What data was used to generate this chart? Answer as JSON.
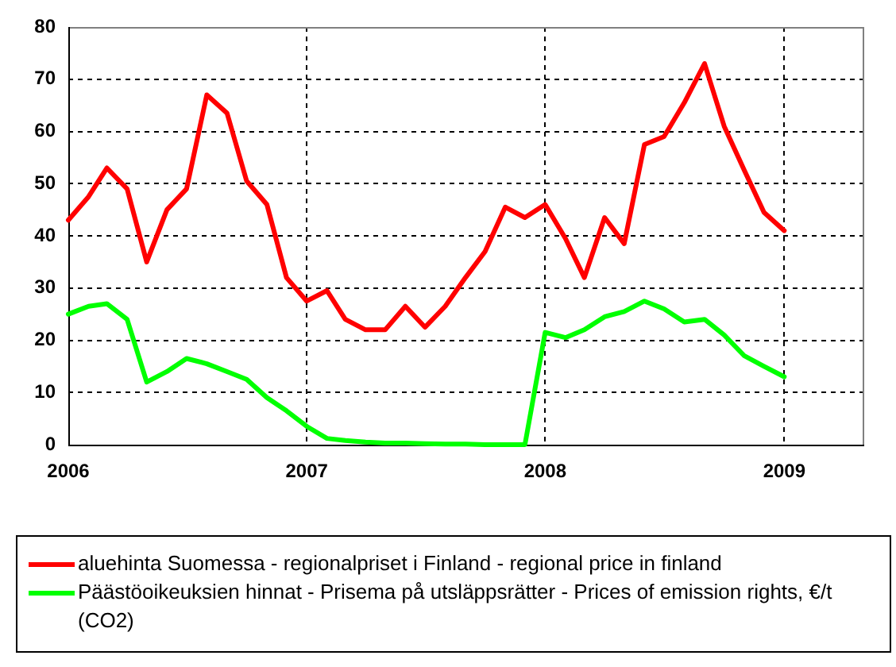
{
  "chart_data": {
    "type": "line",
    "x": [
      "2006-01",
      "2006-02",
      "2006-03",
      "2006-04",
      "2006-05",
      "2006-06",
      "2006-07",
      "2006-08",
      "2006-09",
      "2006-10",
      "2006-11",
      "2006-12",
      "2007-01",
      "2007-02",
      "2007-03",
      "2007-04",
      "2007-05",
      "2007-06",
      "2007-07",
      "2007-08",
      "2007-09",
      "2007-10",
      "2007-11",
      "2007-12",
      "2008-01",
      "2008-02",
      "2008-03",
      "2008-04",
      "2008-05",
      "2008-06",
      "2008-07",
      "2008-08",
      "2008-09",
      "2008-10",
      "2008-11",
      "2008-12",
      "2009-01"
    ],
    "xlim": [
      "2006-01",
      "2009-05"
    ],
    "xticks": [
      "2006",
      "2007",
      "2008",
      "2009"
    ],
    "ylim": [
      0,
      80
    ],
    "yticks": [
      0,
      10,
      20,
      30,
      40,
      50,
      60,
      70,
      80
    ],
    "grid": true,
    "legend": "bottom",
    "marker": "none",
    "line_style": "solid",
    "series": [
      {
        "name": "aluehinta Suomessa - regionalpriset i Finland - regional price in finland",
        "color": "#ff0000",
        "values": [
          43,
          47.5,
          53,
          49,
          35,
          45,
          49,
          67,
          63.5,
          50.5,
          46,
          32,
          27.5,
          29.5,
          24,
          22,
          22,
          26.5,
          22.5,
          26.5,
          32,
          37,
          45.5,
          43.5,
          46,
          39.5,
          32,
          43.5,
          38.5,
          57.5,
          59,
          65.5,
          73,
          61,
          52.5,
          44.5,
          41
        ]
      },
      {
        "name": "Päästöoikeuksien hinnat - Prisema på utsläppsrätter - Prices of emission rights, €/t (CO2)",
        "color": "#00ff00",
        "values": [
          25,
          26.5,
          27,
          24,
          12,
          14,
          16.5,
          15.5,
          14,
          12.5,
          9,
          6.5,
          3.5,
          1.2,
          0.8,
          0.5,
          0.3,
          0.3,
          0.2,
          0.1,
          0.1,
          0,
          0,
          0,
          21.5,
          20.5,
          22,
          24.5,
          25.5,
          27.5,
          26,
          23.5,
          24,
          21,
          17,
          15,
          13
        ]
      }
    ]
  }
}
